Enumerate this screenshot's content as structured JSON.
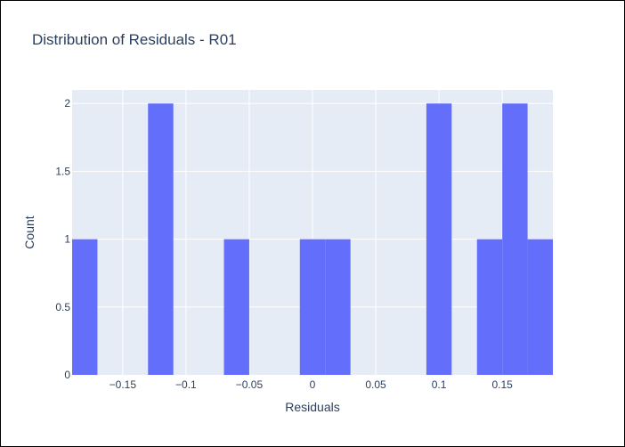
{
  "chart_data": {
    "type": "bar",
    "title": "Distribution of Residuals - R01",
    "xlabel": "Residuals",
    "ylabel": "Count",
    "bin_width": 0.02,
    "bin_start": -0.19,
    "bins": [
      {
        "x0": -0.19,
        "x1": -0.17,
        "count": 1
      },
      {
        "x0": -0.13,
        "x1": -0.11,
        "count": 2
      },
      {
        "x0": -0.07,
        "x1": -0.05,
        "count": 1
      },
      {
        "x0": -0.01,
        "x1": 0.01,
        "count": 1
      },
      {
        "x0": 0.01,
        "x1": 0.03,
        "count": 1
      },
      {
        "x0": 0.09,
        "x1": 0.11,
        "count": 2
      },
      {
        "x0": 0.13,
        "x1": 0.15,
        "count": 1
      },
      {
        "x0": 0.15,
        "x1": 0.17,
        "count": 2
      },
      {
        "x0": 0.17,
        "x1": 0.19,
        "count": 1
      }
    ],
    "xlim": [
      -0.19,
      0.19
    ],
    "ylim": [
      0,
      2.1
    ],
    "x_ticks": [
      {
        "value": -0.15,
        "label": "−0.15"
      },
      {
        "value": -0.1,
        "label": "−0.1"
      },
      {
        "value": -0.05,
        "label": "−0.05"
      },
      {
        "value": 0,
        "label": "0"
      },
      {
        "value": 0.05,
        "label": "0.05"
      },
      {
        "value": 0.1,
        "label": "0.1"
      },
      {
        "value": 0.15,
        "label": "0.15"
      }
    ],
    "y_ticks": [
      {
        "value": 0,
        "label": "0"
      },
      {
        "value": 0.5,
        "label": "0.5"
      },
      {
        "value": 1,
        "label": "1"
      },
      {
        "value": 1.5,
        "label": "1.5"
      },
      {
        "value": 2,
        "label": "2"
      }
    ],
    "grid": true,
    "colors": {
      "bar": "#636efa",
      "plot_background": "#e5ecf6",
      "grid": "#ffffff",
      "text": "#2a3f5f"
    }
  }
}
